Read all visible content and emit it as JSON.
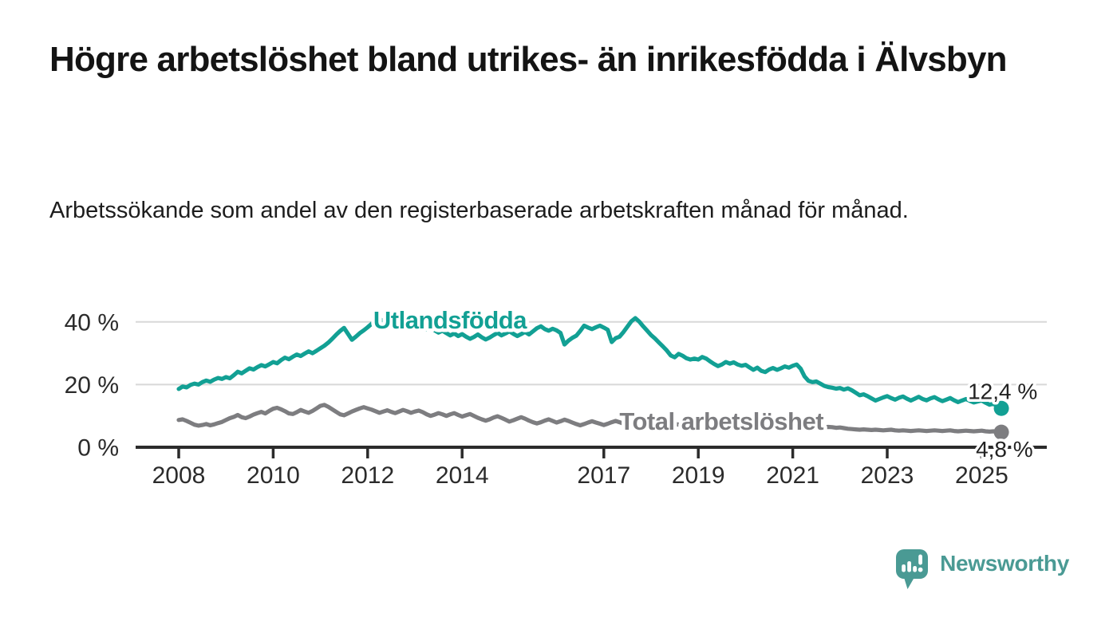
{
  "page": {
    "title": "Högre arbetslöshet bland utrikes- än inrikesfödda i Älvsbyn",
    "subtitle": "Arbetssökande som andel av den registerbaserade arbetskraften månad för månad.",
    "background": "#ffffff"
  },
  "branding": {
    "logo_text": "Newsworthy",
    "logo_color": "#4a9a94",
    "logo_icon": "speech-bubble-bar-chart-icon"
  },
  "chart_data": {
    "type": "line",
    "grid": true,
    "legend": "inline-labels",
    "x_axis": {
      "tick_years": [
        2008,
        2010,
        2012,
        2014,
        2017,
        2019,
        2021,
        2023,
        2025
      ],
      "tick_labels": [
        "2008",
        "2010",
        "2012",
        "2014",
        "2017",
        "2019",
        "2021",
        "2023",
        "2025"
      ],
      "min_year": 2007.1,
      "max_year": 2026.4
    },
    "y_axis": {
      "ticks": [
        0,
        20,
        40
      ],
      "labels": [
        "0 %",
        "20 %",
        "40 %"
      ],
      "unit": "%",
      "max": 44
    },
    "axis_color": "#2b2b2b",
    "grid_color": "#d8d8d8",
    "series": [
      {
        "id": "utlandsfodda",
        "name": "Utlandsfödda",
        "color": "#12a094",
        "line_width": 5.2,
        "start_year": 2008,
        "points_per_year": 12,
        "label": {
          "text": "Utlandsfödda",
          "x_year": 2012.12,
          "y_value": 37.9
        },
        "end_label": "12,4 %",
        "end_value": 12.4,
        "values": [
          18.6,
          19.4,
          19.1,
          19.9,
          20.3,
          20.0,
          20.8,
          21.3,
          20.9,
          21.6,
          22.1,
          21.8,
          22.4,
          22.0,
          23.0,
          24.1,
          23.6,
          24.4,
          25.2,
          24.8,
          25.6,
          26.2,
          25.8,
          26.5,
          27.2,
          26.8,
          27.8,
          28.6,
          28.1,
          28.9,
          29.6,
          29.1,
          29.9,
          30.6,
          30.0,
          30.8,
          31.6,
          32.4,
          33.4,
          34.6,
          35.9,
          37.1,
          38.1,
          36.2,
          34.3,
          35.3,
          36.4,
          37.3,
          38.3,
          39.4,
          40.6,
          41.0,
          40.2,
          39.3,
          38.6,
          39.2,
          39.8,
          39.1,
          38.4,
          38.9,
          39.5,
          38.8,
          38.2,
          37.6,
          38.1,
          37.3,
          36.6,
          37.2,
          36.4,
          35.7,
          36.3,
          35.5,
          36.1,
          35.3,
          34.6,
          35.2,
          36.0,
          35.1,
          34.4,
          35.0,
          35.8,
          36.5,
          35.7,
          36.3,
          37.0,
          36.2,
          35.5,
          36.1,
          36.8,
          36.0,
          37.0,
          38.0,
          38.6,
          37.7,
          37.2,
          37.8,
          37.3,
          36.5,
          32.8,
          34.0,
          34.9,
          35.6,
          37.1,
          38.8,
          38.2,
          37.7,
          38.3,
          38.8,
          38.2,
          37.5,
          33.6,
          34.8,
          35.3,
          36.8,
          38.5,
          40.2,
          41.2,
          40.1,
          38.6,
          37.2,
          35.8,
          34.7,
          33.4,
          32.2,
          30.9,
          29.3,
          28.7,
          29.8,
          29.2,
          28.4,
          28.0,
          28.3,
          28.0,
          28.8,
          28.3,
          27.4,
          26.6,
          25.9,
          26.4,
          27.2,
          26.7,
          27.1,
          26.4,
          26.0,
          26.3,
          25.5,
          24.7,
          25.4,
          24.4,
          24.0,
          24.8,
          25.3,
          24.7,
          25.2,
          25.8,
          25.4,
          26.0,
          26.4,
          25.1,
          22.6,
          21.2,
          20.8,
          21.0,
          20.3,
          19.6,
          19.2,
          19.0,
          18.7,
          18.9,
          18.4,
          18.8,
          18.2,
          17.4,
          16.6,
          16.9,
          16.3,
          15.6,
          14.9,
          15.4,
          15.9,
          16.3,
          15.7,
          15.2,
          15.8,
          16.2,
          15.5,
          14.9,
          15.5,
          16.1,
          15.4,
          15.0,
          15.6,
          16.0,
          15.3,
          14.7,
          15.2,
          15.7,
          15.0,
          14.4,
          14.9,
          15.4,
          14.8,
          14.3,
          14.6,
          14.9,
          14.2,
          13.6,
          13.9,
          13.1,
          12.4
        ]
      },
      {
        "id": "total-arbetsloshet",
        "name": "Total arbetslöshet",
        "color": "#7d7d80",
        "line_width": 5.2,
        "start_year": 2008,
        "points_per_year": 12,
        "label": {
          "text": "Total arbetslöshet",
          "x_year": 2017.33,
          "y_value": 5.6
        },
        "end_label": "4,8 %",
        "end_value": 4.8,
        "values": [
          8.7,
          8.9,
          8.4,
          7.8,
          7.2,
          6.9,
          7.1,
          7.4,
          7.0,
          7.3,
          7.7,
          8.1,
          8.7,
          9.3,
          9.7,
          10.3,
          9.6,
          9.3,
          9.8,
          10.4,
          10.9,
          11.3,
          10.8,
          11.6,
          12.3,
          12.6,
          12.1,
          11.5,
          10.8,
          10.6,
          11.2,
          11.9,
          11.4,
          11.0,
          11.6,
          12.4,
          13.2,
          13.5,
          12.9,
          12.1,
          11.3,
          10.5,
          10.2,
          10.8,
          11.4,
          11.9,
          12.4,
          12.8,
          12.4,
          12.0,
          11.5,
          11.0,
          11.4,
          11.8,
          11.3,
          10.9,
          11.4,
          11.9,
          11.5,
          11.0,
          11.4,
          11.7,
          11.2,
          10.5,
          10.0,
          10.4,
          10.9,
          10.5,
          10.0,
          10.5,
          10.9,
          10.3,
          9.8,
          10.2,
          10.6,
          10.0,
          9.4,
          8.9,
          8.5,
          8.9,
          9.5,
          9.9,
          9.4,
          8.8,
          8.2,
          8.6,
          9.1,
          9.6,
          9.1,
          8.5,
          8.0,
          7.6,
          8.0,
          8.5,
          8.9,
          8.4,
          7.9,
          8.3,
          8.8,
          8.4,
          7.9,
          7.4,
          7.0,
          7.4,
          7.9,
          8.3,
          7.9,
          7.5,
          7.1,
          7.5,
          8.0,
          8.4,
          8.0,
          7.5,
          7.1,
          7.5,
          7.9,
          8.2,
          7.8,
          7.4,
          7.7,
          8.0,
          7.6,
          7.2,
          6.9,
          7.2,
          7.5,
          7.2,
          6.9,
          7.2,
          7.5,
          7.8,
          7.5,
          7.2,
          6.9,
          7.2,
          7.5,
          7.2,
          6.9,
          6.7,
          7.0,
          7.3,
          7.0,
          6.8,
          7.1,
          7.4,
          7.8,
          8.2,
          7.9,
          7.6,
          7.9,
          8.1,
          7.8,
          7.5,
          7.2,
          7.0,
          7.3,
          7.5,
          7.2,
          6.9,
          6.7,
          6.5,
          6.7,
          6.5,
          6.3,
          6.5,
          6.4,
          6.2,
          6.3,
          6.1,
          5.9,
          5.8,
          5.7,
          5.6,
          5.7,
          5.6,
          5.5,
          5.6,
          5.5,
          5.4,
          5.5,
          5.6,
          5.4,
          5.3,
          5.4,
          5.3,
          5.2,
          5.3,
          5.4,
          5.3,
          5.2,
          5.3,
          5.4,
          5.3,
          5.2,
          5.3,
          5.4,
          5.2,
          5.1,
          5.2,
          5.3,
          5.2,
          5.1,
          5.2,
          5.3,
          5.1,
          5.0,
          5.1,
          4.9,
          4.8
        ]
      }
    ]
  }
}
